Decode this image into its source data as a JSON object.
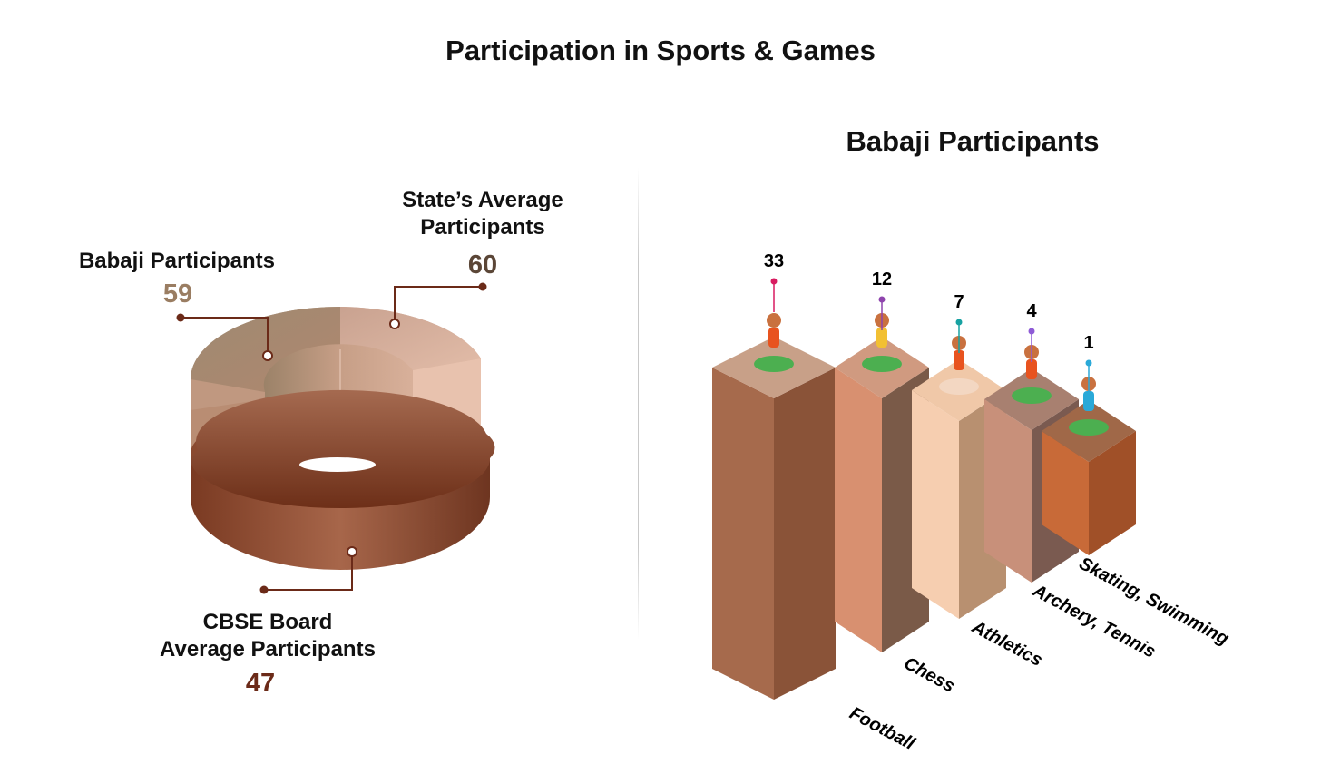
{
  "title": "Participation in Sports & Games",
  "chart_data": [
    {
      "type": "pie",
      "style": "3d-donut",
      "slices": [
        {
          "label": "Babaji Participants",
          "value": 59,
          "color": "#a08a70"
        },
        {
          "label": "State’s Average Participants",
          "value": 60,
          "color": "#d9ac94"
        },
        {
          "label": "CBSE Board Average Participants",
          "value": 47,
          "color": "#7a3a22"
        }
      ],
      "labels": {
        "babaji_line": "Babaji Participants",
        "state_line1": "State’s Average",
        "state_line2": "Participants",
        "cbse_line1": "CBSE Board",
        "cbse_line2": "Average Participants"
      },
      "values_text": {
        "babaji": "59",
        "state": "60",
        "cbse": "47"
      }
    },
    {
      "type": "bar",
      "style": "3d-isometric",
      "title": "Babaji Participants",
      "categories": [
        "Football",
        "Chess",
        "Athletics",
        "Archery, Tennis",
        "Skating, Swimming"
      ],
      "values": [
        33,
        12,
        7,
        4,
        1
      ],
      "value_labels": [
        "33",
        "12",
        "7",
        "4",
        "1"
      ],
      "pin_colors": [
        "#d81b60",
        "#8e44ad",
        "#17a2a2",
        "#8e5bd6",
        "#2aa9d8"
      ]
    }
  ],
  "colors": {
    "babaji_value": "#9a7d62",
    "state_value": "#5b4637",
    "cbse_value": "#6b2a18",
    "connector": "#6b2a18",
    "bar_front": [
      "#a66a4c",
      "#d89070",
      "#f6ceb0",
      "#c8907a",
      "#c86a38"
    ],
    "bar_side": [
      "#8a5338",
      "#7a5a48",
      "#b89070",
      "#7a5a50",
      "#a05028"
    ],
    "bar_top": [
      "#c8a088",
      "#d09a80",
      "#f0c8a8",
      "#a88070",
      "#a06848"
    ]
  },
  "icons": [
    "soccer-player-icon",
    "chess-player-icon",
    "runner-icon",
    "archer-icon",
    "swimmer-icon"
  ]
}
